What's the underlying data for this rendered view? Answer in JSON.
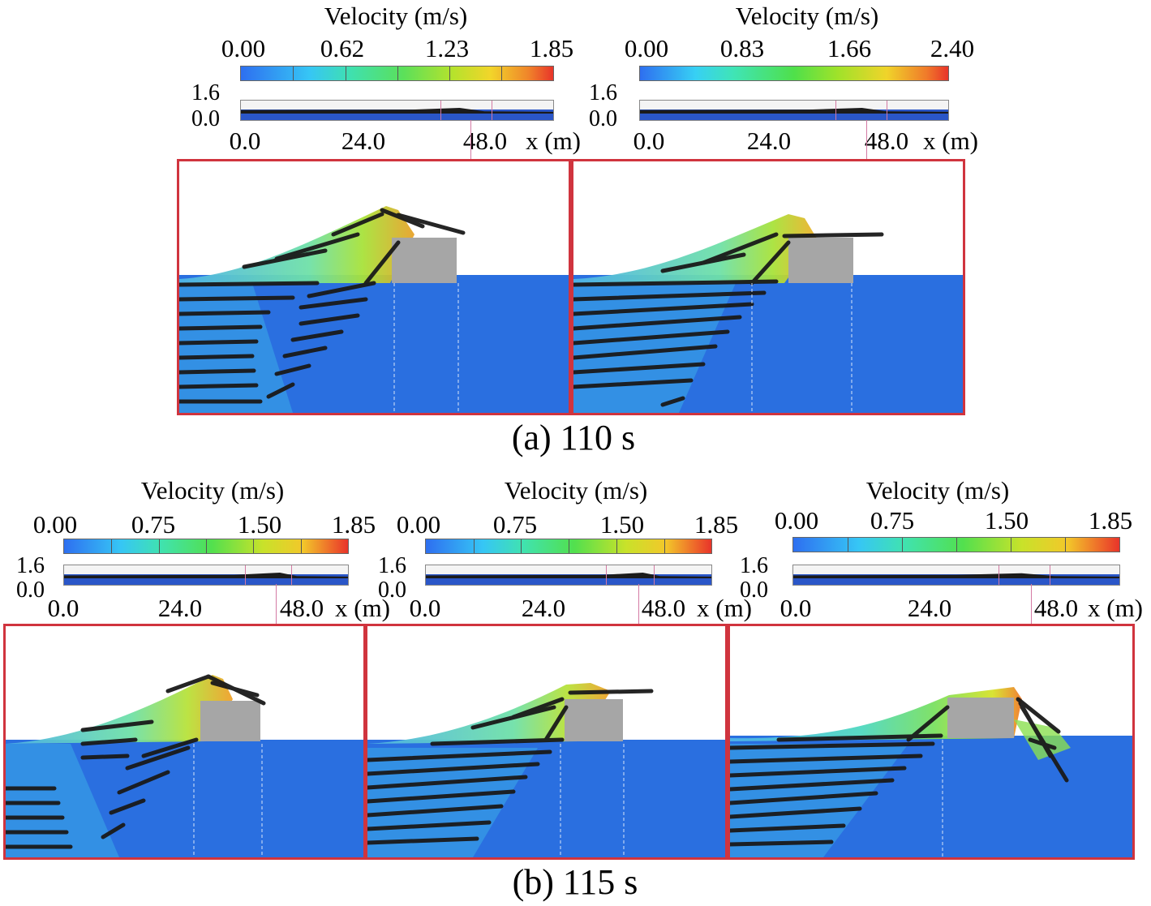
{
  "rows": [
    {
      "caption": "(a) 110 s",
      "panels": [
        {
          "title": "Velocity (m/s)",
          "colorbar_ticks": [
            "0.00",
            "0.62",
            "1.23",
            "1.85"
          ],
          "overview": {
            "y_ticks": [
              "1.6",
              "0.0"
            ],
            "x_ticks": [
              "0.0",
              "24.0",
              "48.0"
            ],
            "x_unit": "x (m)"
          }
        },
        {
          "title": "Velocity (m/s)",
          "colorbar_ticks": [
            "0.00",
            "0.83",
            "1.66",
            "2.40"
          ],
          "overview": {
            "y_ticks": [
              "1.6",
              "0.0"
            ],
            "x_ticks": [
              "0.0",
              "24.0",
              "48.0"
            ],
            "x_unit": "x (m)"
          }
        }
      ]
    },
    {
      "caption": "(b) 115 s",
      "panels": [
        {
          "title": "Velocity (m/s)",
          "colorbar_ticks": [
            "0.00",
            "0.75",
            "1.50",
            "1.85"
          ],
          "overview": {
            "y_ticks": [
              "1.6",
              "0.0"
            ],
            "x_ticks": [
              "0.0",
              "24.0",
              "48.0"
            ],
            "x_unit": "x (m)"
          }
        },
        {
          "title": "Velocity (m/s)",
          "colorbar_ticks": [
            "0.00",
            "0.75",
            "1.50",
            "1.85"
          ],
          "overview": {
            "y_ticks": [
              "1.6",
              "0.0"
            ],
            "x_ticks": [
              "0.0",
              "24.0",
              "48.0"
            ],
            "x_unit": "x (m)"
          }
        },
        {
          "title": "Velocity (m/s)",
          "colorbar_ticks": [
            "0.00",
            "0.75",
            "1.50",
            "1.85"
          ],
          "overview": {
            "y_ticks": [
              "1.6",
              "0.0"
            ],
            "x_ticks": [
              "0.0",
              "24.0",
              "48.0"
            ],
            "x_unit": "x (m)"
          }
        }
      ]
    }
  ],
  "colors": {
    "frame": "#d0343e",
    "water": "#2a6fe0",
    "structure": "#a6a6a6",
    "particles": "#1a1a1a",
    "window": "#d47aa4"
  }
}
